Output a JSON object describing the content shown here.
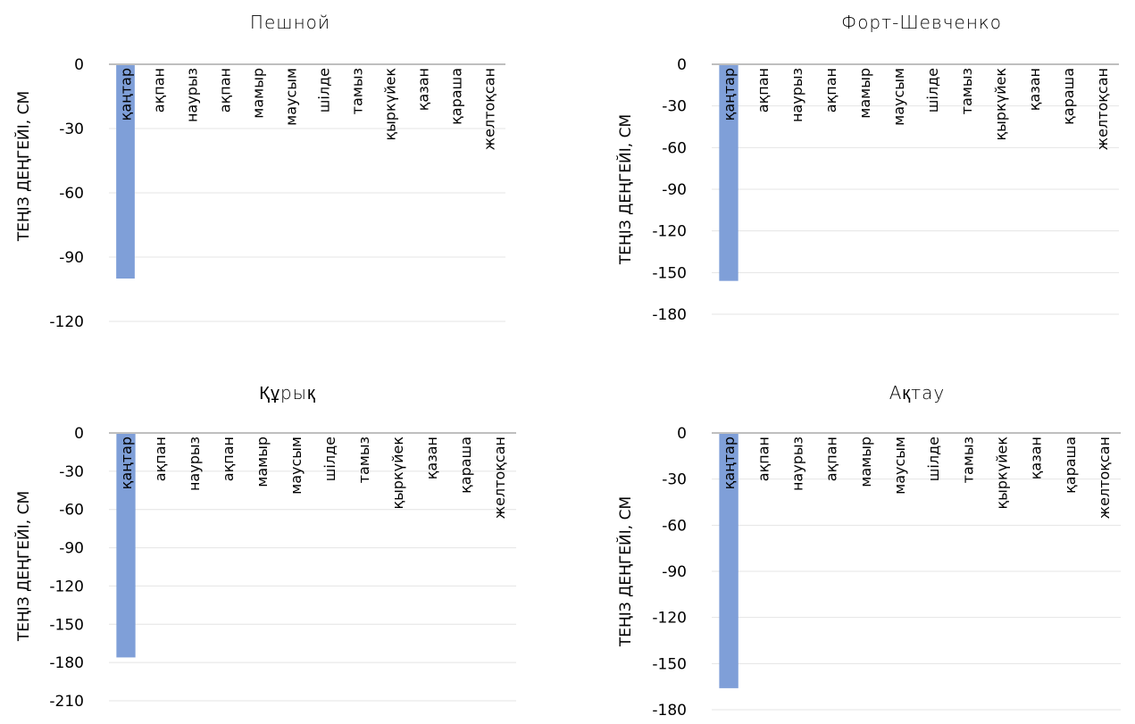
{
  "chart_data": [
    {
      "type": "bar",
      "title": "Пешной",
      "ylabel": "ТЕҢІЗ ДЕҢГЕЙІ, СМ",
      "categories": [
        "қаңтар",
        "ақпан",
        "наурыз",
        "ақпан",
        "мамыр",
        "маусым",
        "шілде",
        "тамыз",
        "қыркүйек",
        "қазан",
        "қараша",
        "желтоқсан"
      ],
      "values": [
        -100,
        null,
        null,
        null,
        null,
        null,
        null,
        null,
        null,
        null,
        null,
        null
      ],
      "yticks": [
        0,
        -30,
        -60,
        -90,
        -120
      ],
      "ylim": [
        -120,
        0
      ],
      "grid": true,
      "bar_color": "#7f9fd8"
    },
    {
      "type": "bar",
      "title": "Форт-Шевченко",
      "ylabel": "ТЕҢІЗ ДЕҢГЕЙІ, СМ",
      "categories": [
        "қаңтар",
        "ақпан",
        "наурыз",
        "ақпан",
        "мамыр",
        "маусым",
        "шілде",
        "тамыз",
        "қыркүйек",
        "қазан",
        "қараша",
        "желтоқсан"
      ],
      "values": [
        -156,
        null,
        null,
        null,
        null,
        null,
        null,
        null,
        null,
        null,
        null,
        null
      ],
      "yticks": [
        0,
        -30,
        -60,
        -90,
        -120,
        -150,
        -180
      ],
      "ylim": [
        -180,
        0
      ],
      "grid": true,
      "bar_color": "#7f9fd8"
    },
    {
      "type": "bar",
      "title": "Құрық",
      "ylabel": "ТЕҢІЗ ДЕҢГЕЙІ, СМ",
      "categories": [
        "қаңтар",
        "ақпан",
        "наурыз",
        "ақпан",
        "мамыр",
        "маусым",
        "шілде",
        "тамыз",
        "қыркүйек",
        "қазан",
        "қараша",
        "желтоқсан"
      ],
      "values": [
        -176,
        null,
        null,
        null,
        null,
        null,
        null,
        null,
        null,
        null,
        null,
        null
      ],
      "yticks": [
        0,
        -30,
        -60,
        -90,
        -120,
        -150,
        -180,
        -210
      ],
      "ylim": [
        -210,
        0
      ],
      "grid": true,
      "bar_color": "#7f9fd8"
    },
    {
      "type": "bar",
      "title": "Ақтау",
      "ylabel": "ТЕҢІЗ ДЕҢГЕЙІ, СМ",
      "categories": [
        "қаңтар",
        "ақпан",
        "наурыз",
        "ақпан",
        "мамыр",
        "маусым",
        "шілде",
        "тамыз",
        "қыркүйек",
        "қазан",
        "қараша",
        "желтоқсан"
      ],
      "values": [
        -166,
        null,
        null,
        null,
        null,
        null,
        null,
        null,
        null,
        null,
        null,
        null
      ],
      "yticks": [
        0,
        -30,
        -60,
        -90,
        -120,
        -150,
        -180
      ],
      "ylim": [
        -180,
        0
      ],
      "grid": true,
      "bar_color": "#7f9fd8"
    }
  ]
}
